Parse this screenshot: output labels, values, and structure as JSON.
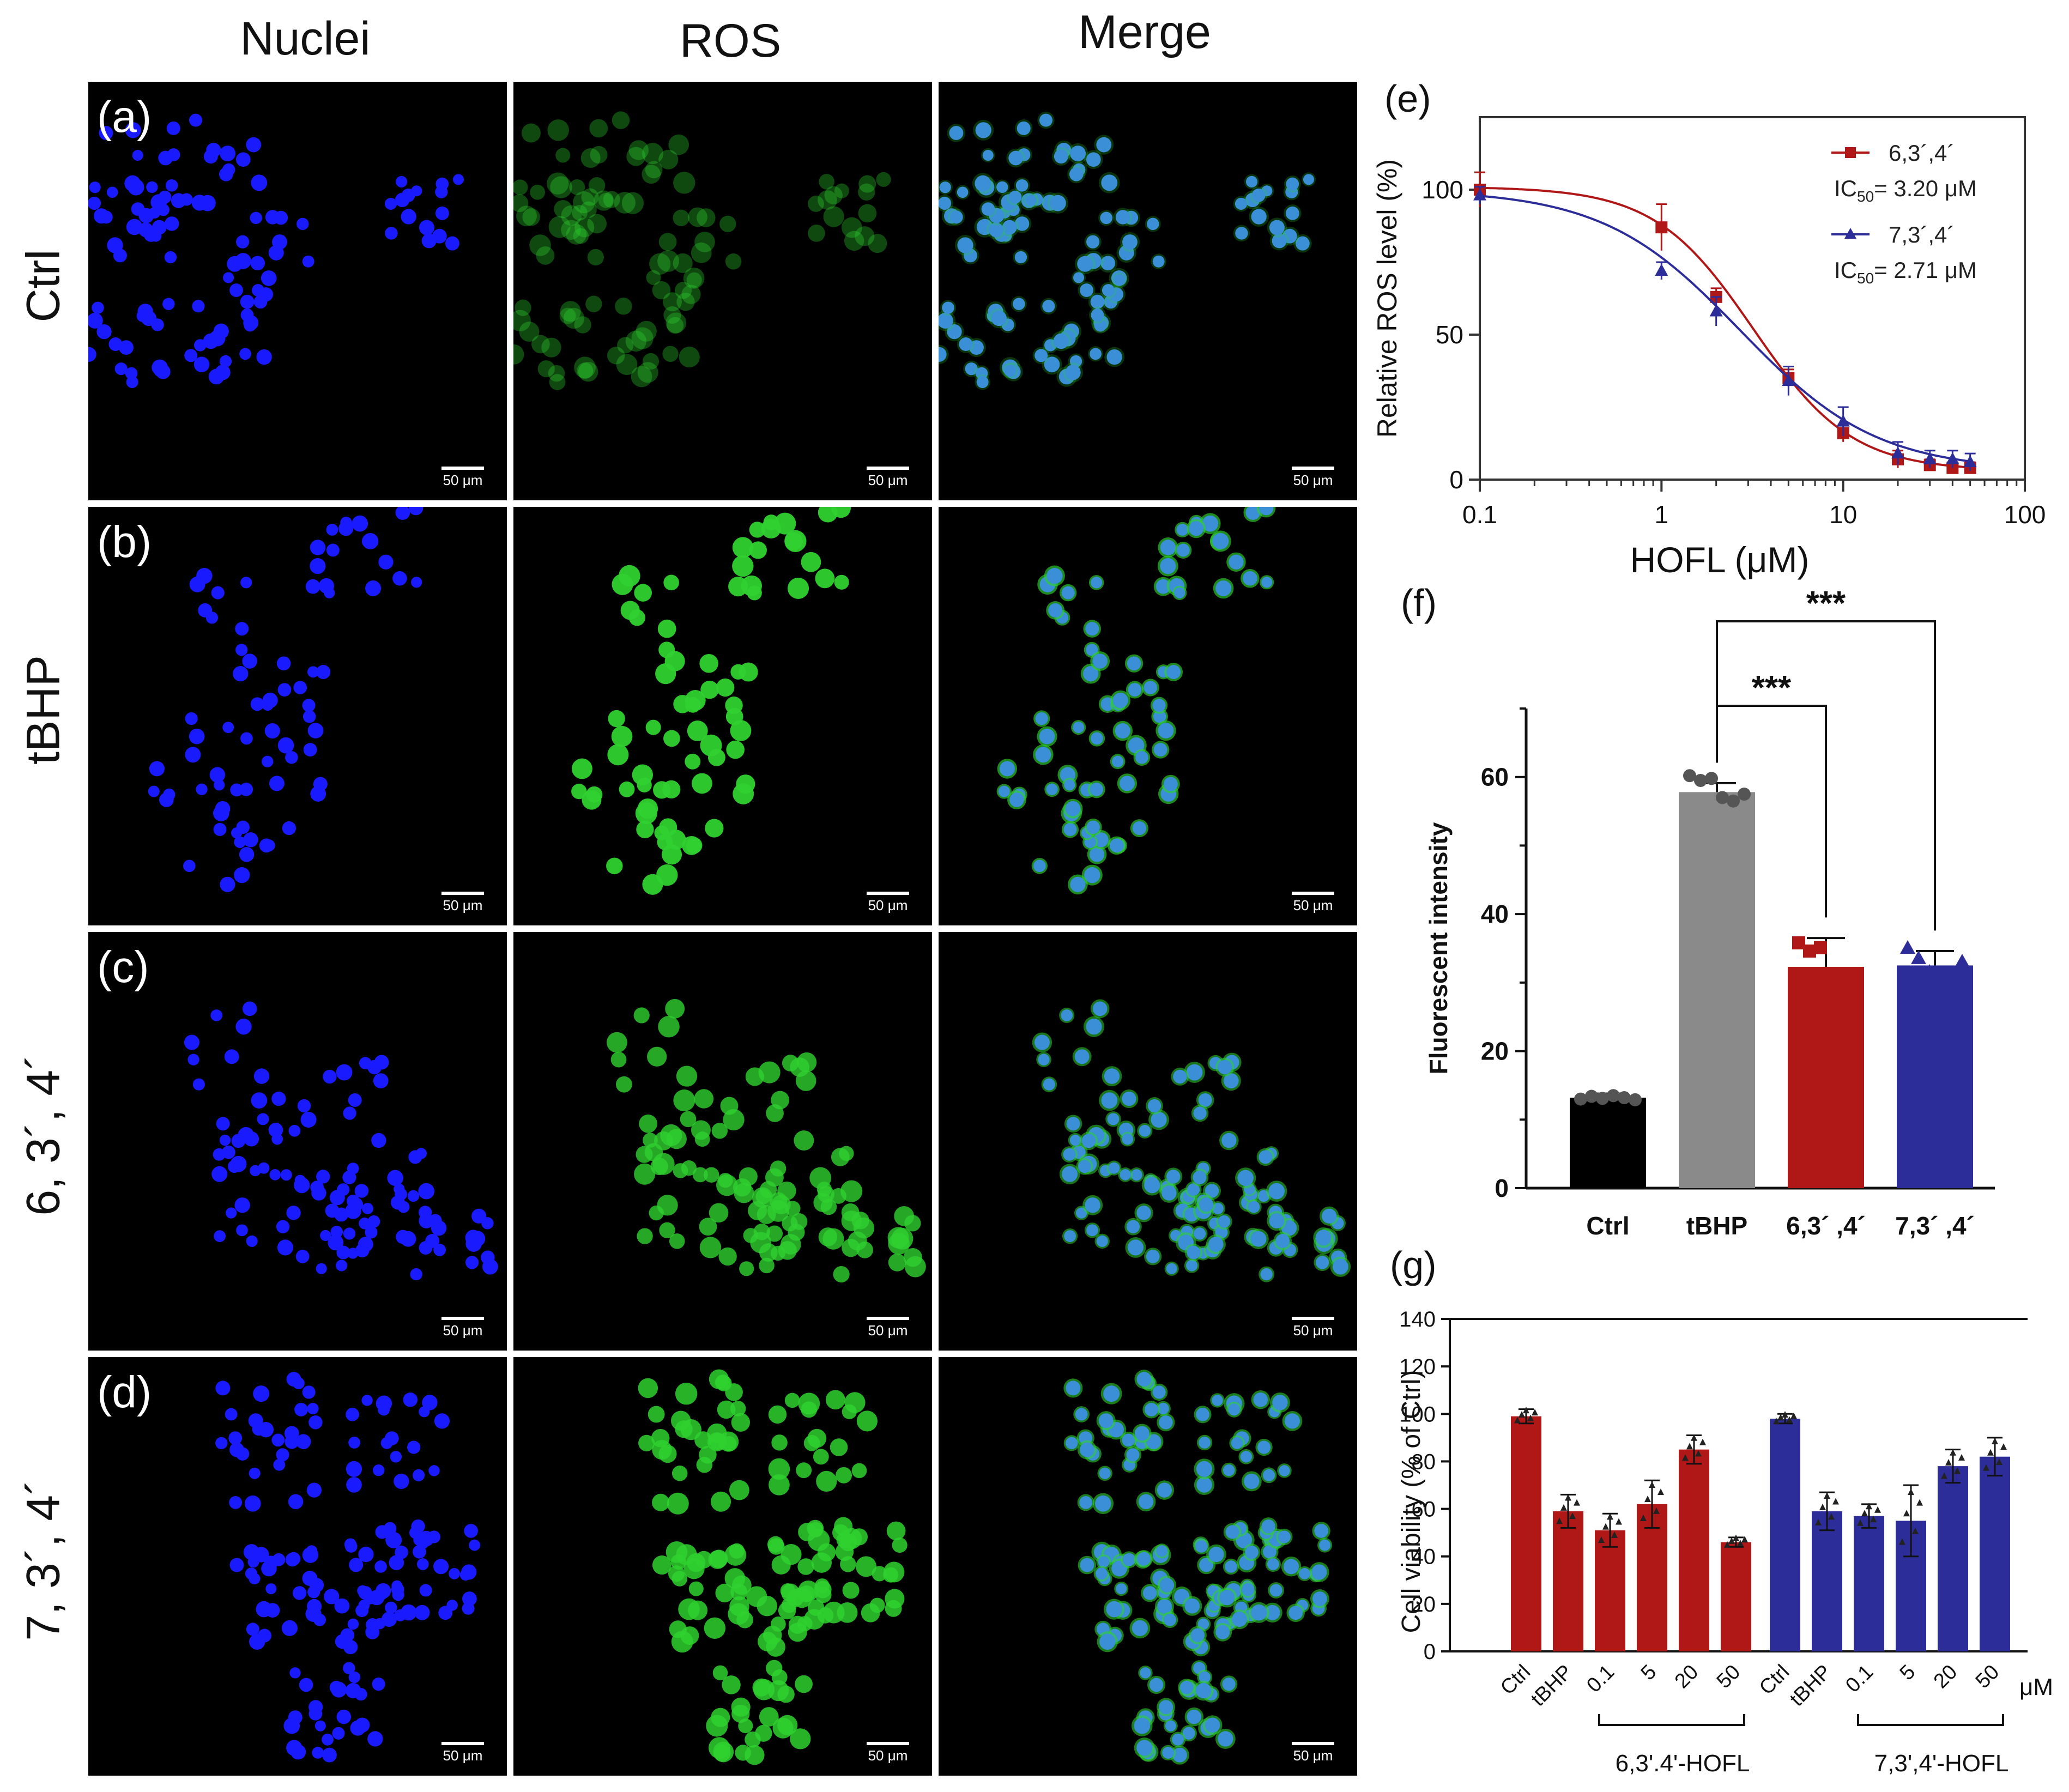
{
  "columns": [
    "Nuclei",
    "ROS",
    "Merge"
  ],
  "rows": [
    {
      "letter": "(a)",
      "label": "Ctrl"
    },
    {
      "letter": "(b)",
      "label": "tBHP"
    },
    {
      "letter": "(c)",
      "label": "6, 3´, 4´"
    },
    {
      "letter": "(d)",
      "label": "7, 3´, 4´"
    }
  ],
  "scale_label": "50 μm",
  "colors": {
    "nuclei": "#1a1aff",
    "ros": "#2fd12f",
    "merge": "#3a8fd6",
    "red": "#b01818",
    "blue": "#2d2d9a",
    "gray": "#8a8a8a",
    "black": "#000000"
  },
  "chart_data": [
    {
      "panel": "(e)",
      "type": "line",
      "xlabel": "HOFL (μM)",
      "ylabel": "Relative ROS level (%)",
      "x_scale": "log",
      "xlim": [
        0.1,
        100
      ],
      "ylim": [
        0,
        125
      ],
      "x_ticks": [
        "0.1",
        "1",
        "10",
        "100"
      ],
      "y_ticks": [
        "0",
        "50",
        "100"
      ],
      "series": [
        {
          "name": "6,3´,4´",
          "ic50_label": "IC",
          "ic50_sub": "50",
          "ic50_value": "= 3.20 μM",
          "color": "#b01818",
          "marker": "square",
          "x": [
            0.1,
            1,
            2,
            5,
            10,
            20,
            30,
            40,
            50
          ],
          "y": [
            100,
            87,
            63,
            35,
            16,
            7,
            5,
            4,
            4
          ],
          "err": [
            6,
            8,
            3,
            3,
            3,
            3,
            2,
            2,
            2
          ],
          "ic50": 3.2
        },
        {
          "name": "7,3´,4´",
          "ic50_label": "IC",
          "ic50_sub": "50",
          "ic50_value": "= 2.71 μM",
          "color": "#2d2d9a",
          "marker": "triangle",
          "x": [
            0.1,
            1,
            2,
            5,
            10,
            20,
            30,
            40,
            50
          ],
          "y": [
            98,
            72,
            58,
            34,
            20,
            9,
            7,
            7,
            6
          ],
          "err": [
            3,
            3,
            5,
            5,
            5,
            4,
            3,
            3,
            3
          ],
          "ic50": 2.71
        }
      ]
    },
    {
      "panel": "(f)",
      "type": "bar",
      "ylabel": "Fluorescent intensity",
      "ylim": [
        0,
        70
      ],
      "y_ticks": [
        "0",
        "20",
        "40",
        "60"
      ],
      "categories": [
        "Ctrl",
        "tBHP",
        "6,3´ ,4´",
        "7,3´ ,4´"
      ],
      "values": [
        13.2,
        57.8,
        32.3,
        32.5
      ],
      "errors": [
        0.6,
        1.3,
        4.2,
        2.1
      ],
      "colors": [
        "#000000",
        "#8a8a8a",
        "#b01818",
        "#2d2d9a"
      ],
      "point_colors": [
        "#555555",
        "#555555",
        "#b01818",
        "#2d2d9a"
      ],
      "point_markers": [
        "circle",
        "circle",
        "square",
        "triangle"
      ],
      "points": [
        [
          13.0,
          13.4,
          13.1,
          13.5,
          13.2,
          12.9
        ],
        [
          60.2,
          59.5,
          59.8,
          57.0,
          56.5,
          57.5
        ],
        [
          35.8,
          34.6,
          35.1,
          30.2,
          28.1,
          25.6
        ],
        [
          35.0,
          33.5,
          31.5,
          30.8,
          31.0,
          33.0
        ]
      ],
      "significance": [
        {
          "label": "***",
          "from": 1,
          "to": 2
        },
        {
          "label": "***",
          "from": 1,
          "to": 3
        }
      ]
    },
    {
      "panel": "(g)",
      "type": "bar",
      "ylabel": "Cell viability (% of Ctrl)",
      "ylim": [
        0,
        140
      ],
      "y_ticks": [
        "0",
        "20",
        "40",
        "60",
        "80",
        "100",
        "120",
        "140"
      ],
      "unit": "μM",
      "groups": [
        {
          "name": "6,3'.4'-HOFL",
          "color": "#b01818",
          "categories": [
            "Ctrl",
            "tBHP",
            "0.1",
            "5",
            "20",
            "50"
          ],
          "values": [
            99,
            59,
            51,
            62,
            85,
            46
          ],
          "errors": [
            3,
            7,
            7,
            10,
            6,
            2
          ]
        },
        {
          "name": "7,3',4'-HOFL",
          "color": "#2d2d9a",
          "categories": [
            "Ctrl",
            "tBHP",
            "0.1",
            "5",
            "20",
            "50"
          ],
          "values": [
            98,
            59,
            57,
            55,
            78,
            82
          ],
          "errors": [
            2,
            8,
            5,
            15,
            7,
            8
          ]
        }
      ]
    }
  ]
}
